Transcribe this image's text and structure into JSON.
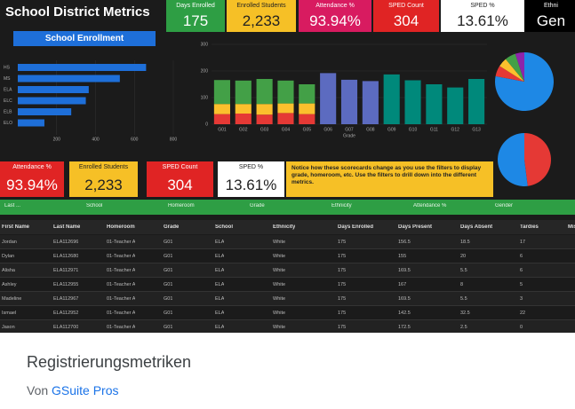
{
  "header": {
    "title": "School District Metrics",
    "kpis": [
      {
        "label": "Days Enrolled",
        "value": "175",
        "bg": "#2e9e44",
        "fg": "#ffffff"
      },
      {
        "label": "Enrolled Students",
        "value": "2,233",
        "bg": "#f6c026",
        "fg": "#222222"
      },
      {
        "label": "Attendance %",
        "value": "93.94%",
        "bg": "#d81b60",
        "fg": "#ffffff"
      },
      {
        "label": "SPED Count",
        "value": "304",
        "bg": "#e02424",
        "fg": "#ffffff"
      },
      {
        "label": "SPED %",
        "value": "13.61%",
        "bg": "#ffffff",
        "fg": "#222222"
      },
      {
        "label": "Ethni",
        "value": "Gen",
        "bg": "#000000",
        "fg": "#ffffff"
      }
    ]
  },
  "enrollment": {
    "title": "School Enrollment",
    "categories": [
      "HS",
      "MS",
      "ELA",
      "ELC",
      "ELB",
      "ELO"
    ],
    "values": [
      660,
      525,
      365,
      350,
      275,
      137
    ],
    "color": "#1e6fd9",
    "xlim": [
      0,
      800
    ],
    "xticks": [
      200,
      400,
      600,
      800
    ]
  },
  "grades": {
    "categories": [
      "G01",
      "G02",
      "G03",
      "G04",
      "G05",
      "G06",
      "G07",
      "G08",
      "G09",
      "G10",
      "G11",
      "G12",
      "G13"
    ],
    "ylim": [
      0,
      300
    ],
    "yticks": [
      0,
      100,
      200,
      300
    ],
    "axis_label": "Grade",
    "series": [
      {
        "color": "#e53935",
        "values": [
          38,
          40,
          36,
          42,
          38,
          null,
          null,
          null,
          null,
          null,
          null,
          null,
          null
        ]
      },
      {
        "color": "#fbc02d",
        "values": [
          38,
          36,
          40,
          36,
          40,
          null,
          null,
          null,
          null,
          null,
          null,
          null,
          null
        ]
      },
      {
        "color": "#43a047",
        "values": [
          90,
          88,
          94,
          86,
          72,
          null,
          null,
          null,
          null,
          null,
          null,
          null,
          null
        ]
      },
      {
        "color": "#5c6bc0",
        "values": [
          null,
          null,
          null,
          null,
          null,
          192,
          167,
          162,
          null,
          null,
          null,
          null,
          null
        ]
      },
      {
        "color": "#00897b",
        "values": [
          null,
          null,
          null,
          null,
          null,
          null,
          null,
          null,
          187,
          165,
          150,
          138,
          170
        ]
      }
    ]
  },
  "pies": [
    {
      "values": [
        78,
        6,
        5,
        6,
        5
      ],
      "colors": [
        "#1e88e5",
        "#e53935",
        "#fbc02d",
        "#43a047",
        "#8e24aa"
      ]
    },
    {
      "values": [
        48,
        52
      ],
      "colors": [
        "#e53935",
        "#1e88e5"
      ]
    }
  ],
  "scorecards": [
    {
      "label": "Attendance %",
      "value": "93.94%",
      "bg": "#e02424",
      "fg": "#ffffff"
    },
    {
      "label": "Enrolled Students",
      "value": "2,233",
      "bg": "#f6c026",
      "fg": "#222222"
    },
    {
      "label": "SPED Count",
      "value": "304",
      "bg": "#e02424",
      "fg": "#ffffff"
    },
    {
      "label": "SPED %",
      "value": "13.61%",
      "bg": "#ffffff",
      "fg": "#222222"
    }
  ],
  "note": "Notice how these scorecards change as you use the filters to display grade, homeroom, etc. Use the filters to drill down into the different metrics.",
  "filters": [
    "Last ...",
    "School",
    "Homeroom",
    "Grade",
    "Ethnicity",
    "Attendance %",
    "Gender"
  ],
  "table": {
    "columns": [
      "First Name",
      "Last Name",
      "Homeroom",
      "Grade",
      "School",
      "Ethnicity",
      "Days Enrolled",
      "Days Present",
      "Days Absent",
      "Tardies",
      "Mis"
    ],
    "rows": [
      [
        "Jordan",
        "ELA112696",
        "01-Teacher A",
        "G01",
        "ELA",
        "White",
        "175",
        "156.5",
        "18.5",
        "17"
      ],
      [
        "Dylan",
        "ELA112680",
        "01-Teacher A",
        "G01",
        "ELA",
        "White",
        "175",
        "155",
        "20",
        "6"
      ],
      [
        "Alisha",
        "ELA112971",
        "01-Teacher A",
        "G01",
        "ELA",
        "White",
        "175",
        "169.5",
        "5.5",
        "6"
      ],
      [
        "Ashley",
        "ELA112955",
        "01-Teacher A",
        "G01",
        "ELA",
        "White",
        "175",
        "167",
        "8",
        "5"
      ],
      [
        "Madeline",
        "ELA112967",
        "01-Teacher A",
        "G01",
        "ELA",
        "White",
        "175",
        "169.5",
        "5.5",
        "3"
      ],
      [
        "Ismael",
        "ELA112952",
        "01-Teacher A",
        "G01",
        "ELA",
        "White",
        "175",
        "142.5",
        "32.5",
        "22"
      ],
      [
        "Jason",
        "ELA112700",
        "01-Teacher A",
        "G01",
        "ELA",
        "White",
        "175",
        "172.5",
        "2.5",
        "0"
      ]
    ]
  },
  "footer": {
    "title": "Registrierungsmetriken",
    "by": "Von",
    "author": "GSuite Pros"
  }
}
